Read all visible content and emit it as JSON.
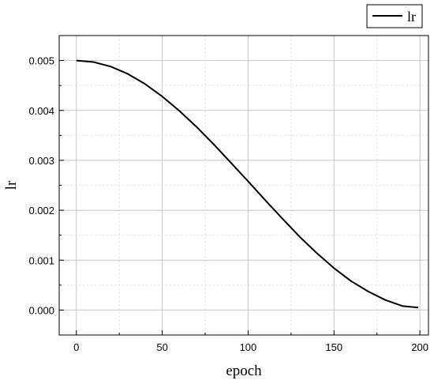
{
  "chart_data": {
    "type": "line",
    "xlabel": "epoch",
    "ylabel": "lr",
    "xlim": [
      -10,
      205
    ],
    "ylim": [
      -0.0005,
      0.0055
    ],
    "xticks": [
      0,
      50,
      100,
      150,
      200
    ],
    "yticks": [
      0.0,
      0.001,
      0.002,
      0.003,
      0.004,
      0.005
    ],
    "xtick_labels": [
      "0",
      "50",
      "100",
      "150",
      "200"
    ],
    "ytick_labels": [
      "0.000",
      "0.001",
      "0.002",
      "0.003",
      "0.004",
      "0.005"
    ],
    "grid": true,
    "legend_position": "top-right, outside plot",
    "series": [
      {
        "name": "lr",
        "color": "#000000",
        "x": [
          0,
          10,
          20,
          30,
          40,
          50,
          60,
          70,
          80,
          90,
          100,
          110,
          120,
          130,
          140,
          150,
          160,
          170,
          180,
          190,
          199
        ],
        "values": [
          0.005,
          0.00497,
          0.00488,
          0.00473,
          0.00453,
          0.00428,
          0.00399,
          0.00367,
          0.00332,
          0.00295,
          0.00258,
          0.0022,
          0.00183,
          0.00147,
          0.00114,
          0.00084,
          0.00058,
          0.00037,
          0.0002,
          8e-05,
          5e-05
        ]
      }
    ]
  }
}
